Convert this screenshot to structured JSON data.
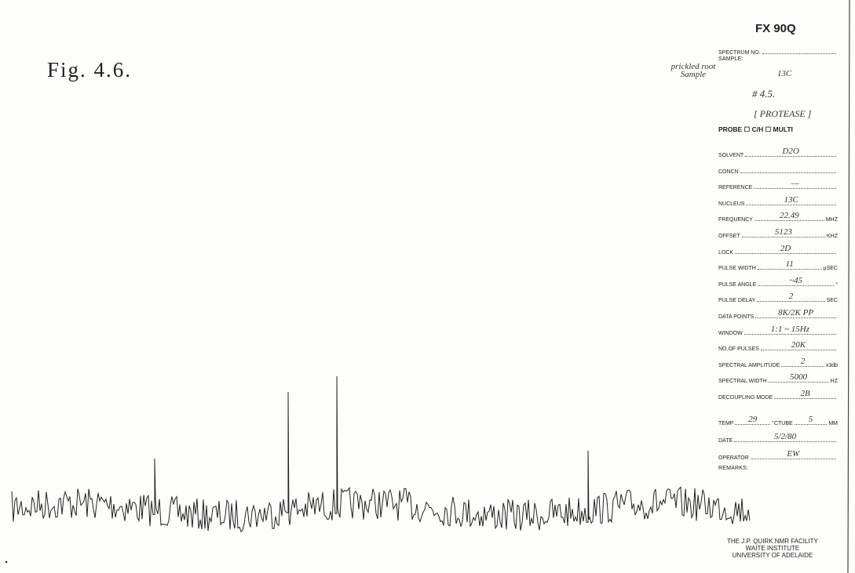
{
  "figure_label": "Fig. 4.6.",
  "form": {
    "title": "FX 90Q",
    "spectrum_no": {
      "label": "SPECTRUM NO."
    },
    "sample": {
      "label": "SAMPLE:",
      "value": "prickled root Sample",
      "nucleus_note": "13C",
      "number_note": "# 4.5.",
      "note": "[ PROTEASE ]"
    },
    "probe": "PROBE ☐ C/H ☐ MULTI",
    "fields": [
      {
        "label": "SOLVENT",
        "value": "D2O"
      },
      {
        "label": "CONCN"
      },
      {
        "label": "REFERENCE",
        "value": "—"
      },
      {
        "label": "NUCLEUS",
        "value": "13C"
      },
      {
        "label": "FREQUENCY",
        "value": "22.49",
        "unit": "MHZ"
      },
      {
        "label": "OFFSET",
        "value": "5123",
        "unit": "KHZ"
      },
      {
        "label": "LOCK",
        "value": "2D"
      },
      {
        "label": "PULSE WIDTH",
        "value": "11",
        "unit": "µSEC"
      },
      {
        "label": "PULSE ANGLE",
        "value": "~45",
        "unit": "°"
      },
      {
        "label": "PULSE DELAY",
        "value": "2",
        "unit": "SEC"
      },
      {
        "label": "DATA POINTS",
        "value": "8K/2K PP"
      },
      {
        "label": "WINDOW",
        "value": "1:1 ~ 15Hz"
      },
      {
        "label": "NO.OF PULSES",
        "value": "20K"
      },
      {
        "label": "SPECTRAL AMPLITUDE",
        "value": "2",
        "unit": "x3db"
      },
      {
        "label": "SPECTRAL WIDTH",
        "value": "5000",
        "unit": "HZ"
      },
      {
        "label": "DECOUPLING MODE",
        "value": "2B"
      }
    ],
    "temp": {
      "label": "TEMP",
      "value": "29",
      "unit": "°C"
    },
    "tube": {
      "label": "TUBE",
      "value": "5",
      "unit": "MM"
    },
    "date": {
      "label": "DATE",
      "value": "5/2/80"
    },
    "operator": {
      "label": "OPERATOR",
      "value": "EW"
    },
    "remarks": {
      "label": "REMARKS:"
    },
    "footer": [
      "THE J.P. QUIRK NMR FACILITY",
      "WAITE INSTITUTE",
      "UNIVERSITY OF ADELAIDE"
    ]
  }
}
